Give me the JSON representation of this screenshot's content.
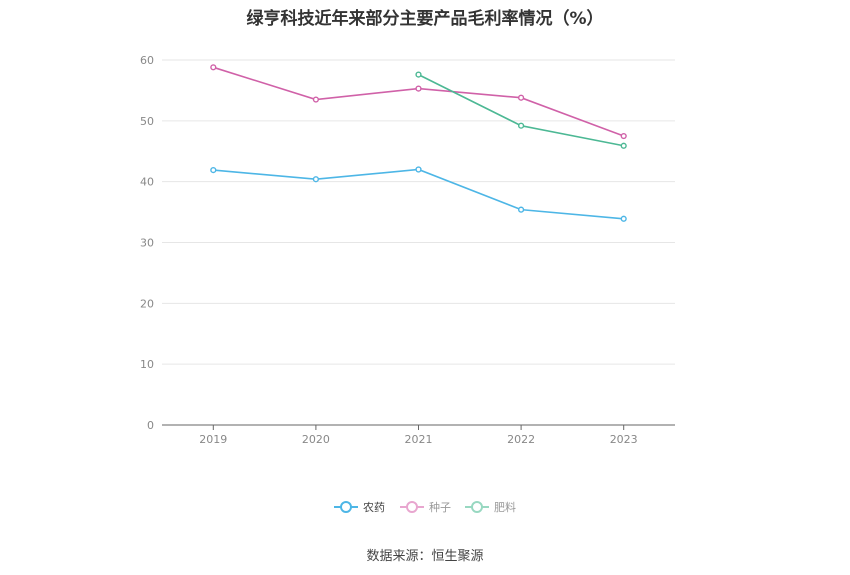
{
  "chart_data": {
    "type": "line",
    "title": "绿亨科技近年来部分主要产品毛利率情况（%）",
    "categories": [
      "2019",
      "2020",
      "2021",
      "2022",
      "2023"
    ],
    "ylim": [
      0,
      60
    ],
    "yticks": [
      0,
      10,
      20,
      30,
      40,
      50,
      60
    ],
    "grid": true,
    "legend_position": "bottom-center",
    "series": [
      {
        "name": "农药",
        "color": "#4db6e6",
        "values": [
          41.9,
          40.4,
          42.0,
          35.4,
          33.9
        ]
      },
      {
        "name": "种子",
        "color": "#d061a8",
        "values": [
          58.8,
          53.5,
          55.3,
          53.8,
          47.5
        ]
      },
      {
        "name": "肥料",
        "color": "#4cb894",
        "values": [
          null,
          null,
          57.6,
          49.2,
          45.9
        ]
      }
    ],
    "legend_colors": [
      "#4db6e6",
      "#e8a6cf",
      "#98d8c1"
    ]
  },
  "source": "数据来源：恒生聚源"
}
